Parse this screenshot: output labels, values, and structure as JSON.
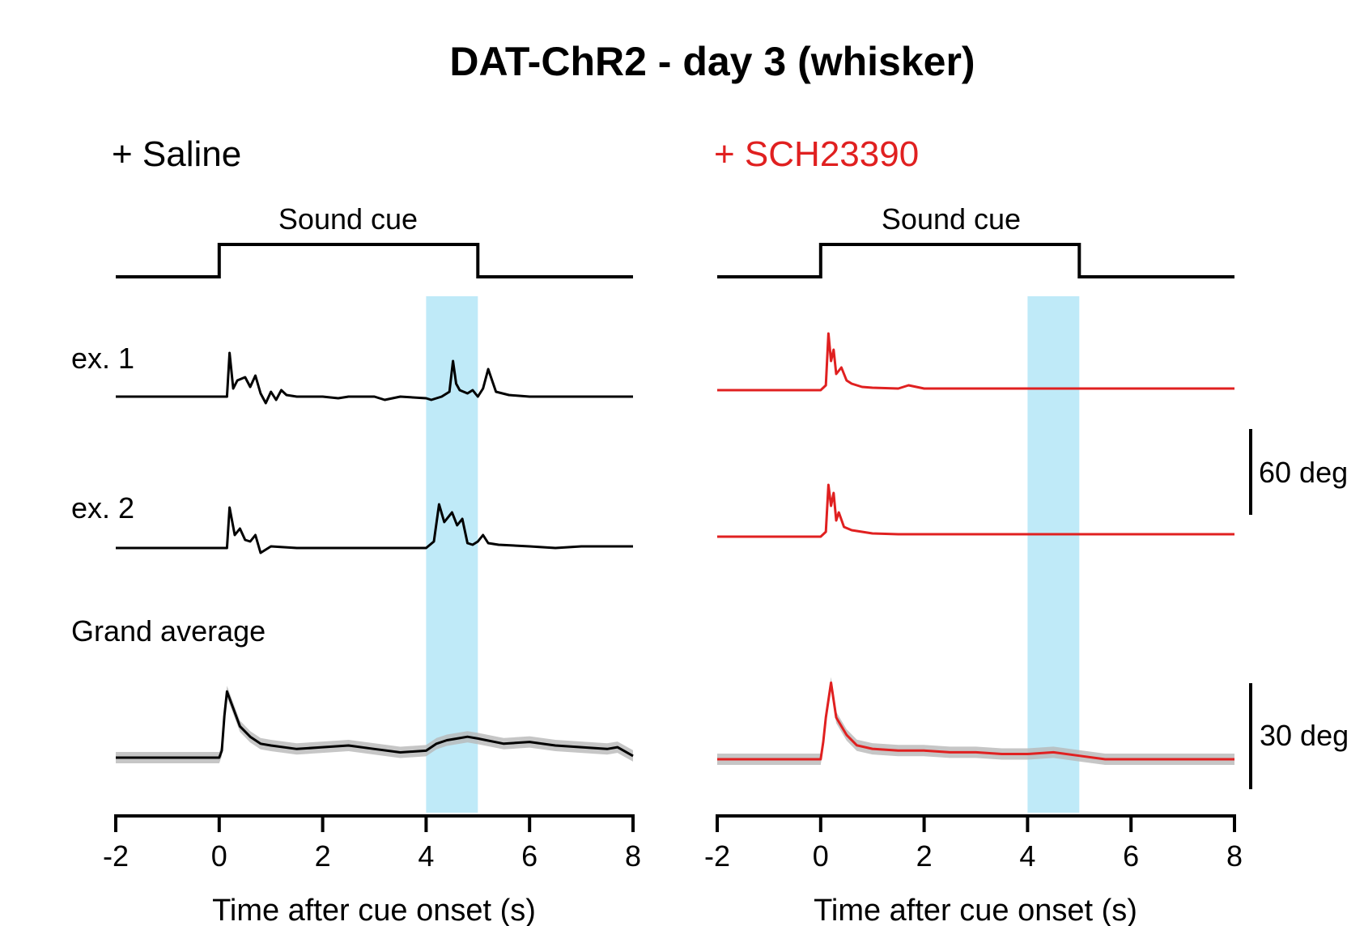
{
  "figure_title": "DAT-ChR2 - day 3 (whisker)",
  "colors": {
    "saline": "#000000",
    "sch": "#e02020",
    "stim_band": "#bfeaf8",
    "sem_band": "#b8b8b8"
  },
  "stimulus_label": "Sound cue",
  "row_labels": {
    "ex1": "ex. 1",
    "ex2": "ex. 2",
    "grand": "Grand average"
  },
  "scale_bars": {
    "examples": "60 deg",
    "average": "30 deg"
  },
  "chart_data": [
    {
      "type": "line",
      "panel": "left",
      "condition": "+ Saline",
      "title": "",
      "xlabel": "Time after cue onset (s)",
      "ylabel": "",
      "xlim": [
        -2,
        8
      ],
      "xticks": [
        "-2",
        "0",
        "2",
        "4",
        "6",
        "8"
      ],
      "sound_cue_on": [
        0,
        5
      ],
      "stim_band": [
        4,
        5
      ],
      "series": [
        {
          "row": "ex. 1",
          "x": [
            -2,
            0.15,
            0.2,
            0.27,
            0.35,
            0.5,
            0.6,
            0.7,
            0.8,
            0.9,
            1.0,
            1.1,
            1.2,
            1.3,
            1.5,
            2.0,
            2.3,
            2.5,
            3.0,
            3.2,
            3.5,
            4.0,
            4.1,
            4.3,
            4.45,
            4.52,
            4.58,
            4.65,
            4.8,
            4.9,
            5.0,
            5.1,
            5.2,
            5.35,
            5.6,
            6.0,
            6.5,
            7.0,
            8
          ],
          "y": [
            0,
            0,
            27,
            5,
            10,
            12,
            6,
            13,
            2,
            -4,
            3,
            -2,
            4,
            1,
            0,
            0,
            -1,
            0,
            0,
            -2,
            0,
            -1,
            -2,
            0,
            3,
            22,
            8,
            4,
            2,
            4,
            0,
            5,
            17,
            3,
            1,
            0,
            0,
            0,
            0
          ]
        },
        {
          "row": "ex. 2",
          "x": [
            -2,
            0.15,
            0.2,
            0.3,
            0.4,
            0.5,
            0.6,
            0.7,
            0.8,
            1.0,
            1.5,
            2.0,
            3.0,
            4.0,
            4.15,
            4.25,
            4.35,
            4.5,
            4.6,
            4.7,
            4.8,
            4.9,
            5.0,
            5.1,
            5.2,
            5.4,
            6.0,
            6.5,
            7.0,
            7.5,
            8
          ],
          "y": [
            0,
            0,
            25,
            8,
            12,
            5,
            4,
            8,
            -3,
            1,
            0,
            0,
            0,
            0,
            4,
            27,
            16,
            22,
            14,
            18,
            3,
            2,
            4,
            8,
            3,
            2,
            1,
            0,
            1,
            1,
            1
          ]
        },
        {
          "row": "Grand average",
          "x": [
            -2,
            -1,
            0,
            0.05,
            0.1,
            0.15,
            0.25,
            0.4,
            0.6,
            0.8,
            1.0,
            1.5,
            2.0,
            2.5,
            3.0,
            3.5,
            4.0,
            4.2,
            4.4,
            4.6,
            4.8,
            5.0,
            5.5,
            6.0,
            6.5,
            7.0,
            7.5,
            7.7,
            8.0
          ],
          "y": [
            0,
            0,
            0,
            2,
            12,
            19,
            15,
            9,
            6,
            4,
            3.5,
            2.5,
            3,
            3.5,
            2.5,
            1.5,
            2,
            4,
            5,
            5.5,
            6,
            5.5,
            4,
            4.5,
            3.5,
            3,
            2.5,
            3,
            0.5
          ]
        }
      ]
    },
    {
      "type": "line",
      "panel": "right",
      "condition": "+ SCH23390",
      "title": "",
      "xlabel": "Time after cue onset (s)",
      "ylabel": "",
      "xlim": [
        -2,
        8
      ],
      "xticks": [
        "-2",
        "0",
        "2",
        "4",
        "6",
        "8"
      ],
      "sound_cue_on": [
        0,
        5
      ],
      "stim_band": [
        4,
        5
      ],
      "series": [
        {
          "row": "ex. 1",
          "x": [
            -2,
            0,
            0.1,
            0.15,
            0.2,
            0.25,
            0.3,
            0.4,
            0.5,
            0.6,
            0.8,
            1.0,
            1.5,
            1.7,
            2.0,
            3.0,
            4.0,
            5.0,
            6.0,
            7.0,
            8.0
          ],
          "y": [
            0,
            0,
            3,
            35,
            18,
            25,
            10,
            14,
            6,
            4,
            2,
            1.5,
            1,
            3,
            1,
            1,
            1,
            1,
            1,
            1,
            1
          ]
        },
        {
          "row": "ex. 2",
          "x": [
            -2,
            0,
            0.1,
            0.15,
            0.2,
            0.25,
            0.3,
            0.35,
            0.45,
            0.6,
            0.8,
            1.0,
            1.5,
            2.0,
            3.0,
            4.0,
            5.0,
            6.0,
            7.0,
            8.0
          ],
          "y": [
            0,
            0,
            3,
            32,
            19,
            27,
            10,
            15,
            6,
            4,
            3,
            2,
            1.5,
            1.5,
            1.5,
            1.5,
            1.5,
            1.5,
            1.5,
            1.5
          ]
        },
        {
          "row": "Grand average",
          "x": [
            -2,
            -1,
            0,
            0.05,
            0.1,
            0.2,
            0.3,
            0.5,
            0.7,
            1.0,
            1.5,
            2.0,
            2.5,
            3.0,
            3.5,
            4.0,
            4.5,
            5.0,
            5.5,
            6.0,
            7.0,
            8.0
          ],
          "y": [
            0,
            0,
            0,
            5,
            12,
            22,
            12,
            7,
            4,
            3,
            2.5,
            2.5,
            2,
            2,
            1.5,
            1.5,
            2,
            1,
            0,
            0,
            0,
            0
          ]
        }
      ]
    }
  ]
}
